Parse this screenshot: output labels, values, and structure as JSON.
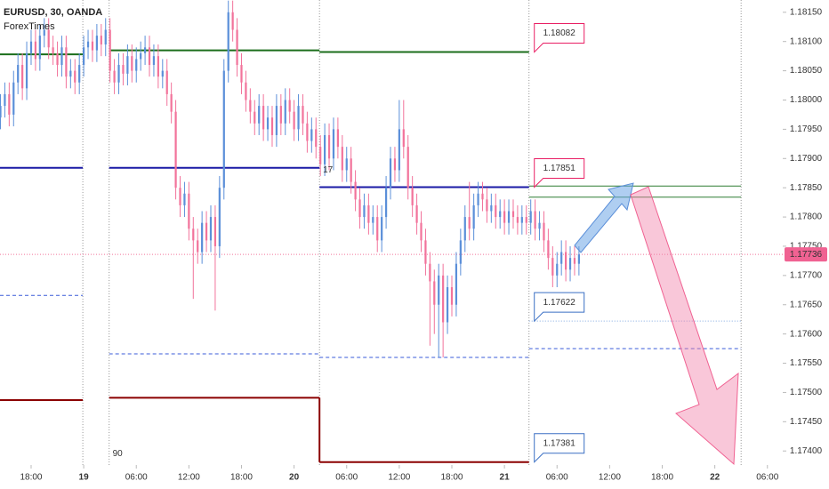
{
  "chart_data": {
    "type": "candlestick",
    "title": "EURUSD, 30, OANDA",
    "subtitle": "ForexTimes",
    "up_color": "#5b8fd9",
    "down_color": "#f2739b",
    "xlim": [
      -3.55,
      85.75
    ],
    "ylim": [
      1.17376,
      1.18171
    ],
    "xticks": [
      {
        "value": 0,
        "label": "18:00"
      },
      {
        "value": 6,
        "label": "19"
      },
      {
        "value": 12,
        "label": "06:00"
      },
      {
        "value": 18,
        "label": "12:00"
      },
      {
        "value": 24,
        "label": "18:00"
      },
      {
        "value": 30,
        "label": "20"
      },
      {
        "value": 36,
        "label": "06:00"
      },
      {
        "value": 42,
        "label": "12:00"
      },
      {
        "value": 48,
        "label": "18:00"
      },
      {
        "value": 54,
        "label": "21"
      },
      {
        "value": 60,
        "label": "06:00"
      },
      {
        "value": 66,
        "label": "12:00"
      },
      {
        "value": 72,
        "label": "18:00"
      },
      {
        "value": 78,
        "label": "22"
      },
      {
        "value": 84,
        "label": "06:00"
      }
    ],
    "yticks": [
      {
        "value": 1.1815,
        "label": "1.18150"
      },
      {
        "value": 1.181,
        "label": "1.18100"
      },
      {
        "value": 1.1805,
        "label": "1.18050"
      },
      {
        "value": 1.18,
        "label": "1.18000"
      },
      {
        "value": 1.1795,
        "label": "1.17950"
      },
      {
        "value": 1.179,
        "label": "1.17900"
      },
      {
        "value": 1.1785,
        "label": "1.17850"
      },
      {
        "value": 1.178,
        "label": "1.17800"
      },
      {
        "value": 1.1775,
        "label": "1.17750"
      },
      {
        "value": 1.177,
        "label": "1.17700"
      },
      {
        "value": 1.1765,
        "label": "1.17650"
      },
      {
        "value": 1.176,
        "label": "1.17600"
      },
      {
        "value": 1.1755,
        "label": "1.17550"
      },
      {
        "value": 1.175,
        "label": "1.17500"
      },
      {
        "value": 1.1745,
        "label": "1.17450"
      },
      {
        "value": 1.174,
        "label": "1.17400"
      }
    ],
    "sessions": [
      5.9,
      8.9,
      32.9,
      56.8,
      81
    ],
    "x": [
      -3.5,
      -3,
      -2.5,
      -2,
      -1.5,
      -1,
      -0.5,
      0,
      0.5,
      1,
      1.5,
      2,
      2.5,
      3,
      3.5,
      4,
      4.5,
      5,
      5.5,
      6,
      6.5,
      7,
      7.5,
      8,
      8.5,
      9,
      9.5,
      10,
      10.5,
      11,
      11.5,
      12,
      12.5,
      13,
      13.5,
      14,
      14.5,
      15,
      15.5,
      16,
      16.5,
      17,
      17.5,
      18,
      18.5,
      19,
      19.5,
      20,
      20.5,
      21,
      21.5,
      22,
      22.5,
      23,
      23.5,
      24,
      24.5,
      25,
      25.5,
      26,
      26.5,
      27,
      27.5,
      28,
      28.5,
      29,
      29.5,
      30,
      30.5,
      31,
      31.5,
      32,
      32.5,
      33,
      33.5,
      34,
      34.5,
      35,
      35.5,
      36,
      36.5,
      37,
      37.5,
      38,
      38.5,
      39,
      39.5,
      40,
      40.5,
      41,
      41.5,
      42,
      42.5,
      43,
      43.5,
      44,
      44.5,
      45,
      45.5,
      46,
      46.5,
      47,
      47.5,
      48,
      48.5,
      49,
      49.5,
      50,
      50.5,
      51,
      51.5,
      52,
      52.5,
      53,
      53.5,
      54,
      54.5,
      55,
      55.5,
      56,
      56.5,
      57,
      57.5,
      58,
      58.5,
      59,
      59.5,
      60,
      60.5,
      61,
      61.5,
      62,
      62.5
    ],
    "open": [
      1.1797,
      1.1799,
      1.1801,
      1.17975,
      1.1803,
      1.1806,
      1.1802,
      1.1808,
      1.181,
      1.1807,
      1.1811,
      1.1812,
      1.1809,
      1.1808,
      1.1806,
      1.1809,
      1.1804,
      1.1805,
      1.1803,
      1.1806,
      1.1809,
      1.181,
      1.18085,
      1.1811,
      1.18095,
      1.1812,
      1.1805,
      1.1803,
      1.1806,
      1.18045,
      1.18075,
      1.1805,
      1.1807,
      1.1808,
      1.1809,
      1.1806,
      1.18075,
      1.1804,
      1.1805,
      1.1801,
      1.1798,
      1.1785,
      1.1782,
      1.1784,
      1.1778,
      1.1776,
      1.1774,
      1.1779,
      1.1776,
      1.178,
      1.1775,
      1.1785,
      1.1805,
      1.1815,
      1.1812,
      1.1806,
      1.1803,
      1.18,
      1.1798,
      1.1796,
      1.1799,
      1.1795,
      1.1797,
      1.1794,
      1.1799,
      1.1796,
      1.18,
      1.1798,
      1.1795,
      1.1799,
      1.1796,
      1.1793,
      1.1795,
      1.1792,
      1.1789,
      1.1794,
      1.179,
      1.1795,
      1.1792,
      1.1788,
      1.179,
      1.1786,
      1.1783,
      1.178,
      1.1782,
      1.1779,
      1.178,
      1.1776,
      1.178,
      1.1785,
      1.179,
      1.1788,
      1.1795,
      1.1792,
      1.1785,
      1.1782,
      1.1779,
      1.1776,
      1.1772,
      1.1769,
      1.1765,
      1.177,
      1.1762,
      1.1768,
      1.1765,
      1.1772,
      1.1776,
      1.178,
      1.1778,
      1.1782,
      1.1784,
      1.1783,
      1.1781,
      1.1782,
      1.178,
      1.1781,
      1.1779,
      1.1781,
      1.178,
      1.1779,
      1.178,
      1.1779,
      1.1781,
      1.1778,
      1.1779,
      1.1776,
      1.1773,
      1.177,
      1.1772,
      1.1774,
      1.1771,
      1.1773,
      1.1772
    ],
    "high": [
      1.1801,
      1.1803,
      1.1803,
      1.1805,
      1.1808,
      1.1808,
      1.181,
      1.1812,
      1.1812,
      1.1813,
      1.1814,
      1.1814,
      1.1811,
      1.181,
      1.1811,
      1.1811,
      1.1807,
      1.1807,
      1.1808,
      1.1811,
      1.1812,
      1.1812,
      1.1813,
      1.1813,
      1.1814,
      1.1814,
      1.1807,
      1.1808,
      1.1808,
      1.18095,
      1.18095,
      1.1809,
      1.181,
      1.1811,
      1.1811,
      1.18095,
      1.18095,
      1.1807,
      1.1807,
      1.1803,
      1.18,
      1.1787,
      1.1786,
      1.1786,
      1.178,
      1.1778,
      1.1781,
      1.1781,
      1.1782,
      1.1782,
      1.1787,
      1.1807,
      1.1817,
      1.1817,
      1.1814,
      1.1808,
      1.1805,
      1.1802,
      1.18,
      1.1801,
      1.1801,
      1.1799,
      1.1799,
      1.1801,
      1.1801,
      1.1802,
      1.1802,
      1.18,
      1.1801,
      1.1801,
      1.1798,
      1.1797,
      1.1797,
      1.1794,
      1.1796,
      1.1796,
      1.1797,
      1.1797,
      1.1794,
      1.1792,
      1.1792,
      1.1788,
      1.1785,
      1.1784,
      1.1784,
      1.1782,
      1.1782,
      1.1782,
      1.1787,
      1.1792,
      1.1792,
      1.18,
      1.18,
      1.1794,
      1.1787,
      1.1784,
      1.1781,
      1.1778,
      1.1774,
      1.1771,
      1.1772,
      1.1772,
      1.177,
      1.177,
      1.1774,
      1.1778,
      1.1782,
      1.1786,
      1.1784,
      1.1786,
      1.1786,
      1.1785,
      1.1784,
      1.1784,
      1.1783,
      1.1783,
      1.1783,
      1.1783,
      1.1782,
      1.1782,
      1.1782,
      1.1783,
      1.1783,
      1.1781,
      1.1781,
      1.1778,
      1.1775,
      1.1774,
      1.1776,
      1.1776,
      1.1775,
      1.1775,
      1.1775
    ],
    "low": [
      1.1795,
      1.1797,
      1.17955,
      1.17955,
      1.1801,
      1.18,
      1.18,
      1.1806,
      1.1805,
      1.1805,
      1.1809,
      1.1807,
      1.1806,
      1.1804,
      1.1804,
      1.1802,
      1.1802,
      1.1801,
      1.1801,
      1.1804,
      1.1807,
      1.18065,
      1.18065,
      1.18075,
      1.18075,
      1.1803,
      1.1801,
      1.1801,
      1.18025,
      1.18025,
      1.1803,
      1.1803,
      1.1805,
      1.1806,
      1.1804,
      1.1804,
      1.1802,
      1.1802,
      1.1799,
      1.1796,
      1.1783,
      1.178,
      1.178,
      1.1776,
      1.1766,
      1.1772,
      1.1772,
      1.1774,
      1.1774,
      1.1764,
      1.1773,
      1.1783,
      1.1803,
      1.181,
      1.1804,
      1.1801,
      1.1798,
      1.1796,
      1.1794,
      1.1794,
      1.1793,
      1.1793,
      1.1792,
      1.1792,
      1.1794,
      1.1794,
      1.1796,
      1.1793,
      1.1793,
      1.1794,
      1.1791,
      1.1791,
      1.179,
      1.1787,
      1.1787,
      1.1788,
      1.1788,
      1.179,
      1.1786,
      1.1786,
      1.1784,
      1.1781,
      1.1778,
      1.1778,
      1.1777,
      1.1777,
      1.1774,
      1.1774,
      1.1778,
      1.1783,
      1.1786,
      1.1786,
      1.179,
      1.1783,
      1.178,
      1.1777,
      1.1774,
      1.177,
      1.1758,
      1.176,
      1.1756,
      1.1756,
      1.176,
      1.1763,
      1.1763,
      1.177,
      1.1774,
      1.1776,
      1.1776,
      1.178,
      1.1781,
      1.1779,
      1.1779,
      1.1778,
      1.1778,
      1.1777,
      1.1777,
      1.1778,
      1.1777,
      1.1777,
      1.1777,
      1.1777,
      1.1776,
      1.1776,
      1.1774,
      1.1771,
      1.1768,
      1.1768,
      1.177,
      1.1769,
      1.1769,
      1.177,
      1.177
    ],
    "close": [
      1.1799,
      1.1801,
      1.17975,
      1.1803,
      1.1806,
      1.1802,
      1.1808,
      1.181,
      1.1807,
      1.1811,
      1.1812,
      1.1809,
      1.1808,
      1.1806,
      1.1809,
      1.1804,
      1.1805,
      1.1803,
      1.1806,
      1.1809,
      1.181,
      1.18085,
      1.1811,
      1.18095,
      1.1812,
      1.1805,
      1.1803,
      1.1806,
      1.18045,
      1.18075,
      1.1805,
      1.1807,
      1.1808,
      1.1809,
      1.1806,
      1.18075,
      1.1804,
      1.1805,
      1.1801,
      1.1798,
      1.1785,
      1.1782,
      1.1784,
      1.1778,
      1.1776,
      1.1774,
      1.1779,
      1.1776,
      1.178,
      1.1775,
      1.1785,
      1.1805,
      1.1815,
      1.1812,
      1.1806,
      1.1803,
      1.18,
      1.1798,
      1.1796,
      1.1799,
      1.1795,
      1.1797,
      1.1794,
      1.1799,
      1.1796,
      1.18,
      1.1798,
      1.1795,
      1.1799,
      1.1796,
      1.1793,
      1.1795,
      1.1792,
      1.1789,
      1.1794,
      1.179,
      1.1795,
      1.1792,
      1.1788,
      1.179,
      1.1786,
      1.1783,
      1.178,
      1.1782,
      1.1779,
      1.178,
      1.1776,
      1.178,
      1.1785,
      1.179,
      1.1788,
      1.1795,
      1.1792,
      1.1785,
      1.1782,
      1.1779,
      1.1776,
      1.1772,
      1.1769,
      1.1765,
      1.177,
      1.1762,
      1.1768,
      1.1765,
      1.1772,
      1.1776,
      1.178,
      1.1778,
      1.1782,
      1.1784,
      1.1783,
      1.1781,
      1.1782,
      1.178,
      1.1781,
      1.1779,
      1.1781,
      1.178,
      1.1779,
      1.178,
      1.1779,
      1.1781,
      1.1778,
      1.1779,
      1.1776,
      1.1773,
      1.177,
      1.1772,
      1.1774,
      1.1771,
      1.1773,
      1.1772,
      1.17736
    ],
    "last_price": 1.17736,
    "levels": [
      {
        "value": 1.18078,
        "x": [
          -3.55,
          5.9
        ],
        "color": "#1b6e1b",
        "style": "solid"
      },
      {
        "value": 1.17884,
        "x": [
          -3.55,
          5.9
        ],
        "color": "#1a1aa6",
        "style": "solid"
      },
      {
        "value": 1.17666,
        "x": [
          -3.55,
          5.9
        ],
        "color": "#3a5bd9",
        "style": "dashed"
      },
      {
        "value": 1.17487,
        "x": [
          -3.55,
          5.9
        ],
        "color": "#8b0000",
        "style": "solid"
      },
      {
        "value": 1.18085,
        "x": [
          8.9,
          32.9
        ],
        "color": "#1b6e1b",
        "style": "solid"
      },
      {
        "value": 1.17884,
        "x": [
          8.9,
          32.9
        ],
        "color": "#1a1aa6",
        "style": "solid"
      },
      {
        "value": 1.17566,
        "x": [
          8.9,
          32.9
        ],
        "color": "#3a5bd9",
        "style": "dashed"
      },
      {
        "value": 1.17491,
        "x": [
          8.9,
          32.9
        ],
        "color": "#8b0000",
        "style": "solid"
      },
      {
        "value": 1.18082,
        "x": [
          32.9,
          56.8
        ],
        "color": "#1b6e1b",
        "style": "solid"
      },
      {
        "value": 1.17851,
        "x": [
          32.9,
          56.8
        ],
        "color": "#1a1aa6",
        "style": "solid"
      },
      {
        "value": 1.1756,
        "x": [
          32.9,
          56.8
        ],
        "color": "#3a5bd9",
        "style": "dashed"
      },
      {
        "value": 1.17381,
        "x": [
          32.9,
          56.8
        ],
        "color": "#8b0000",
        "style": "solid"
      },
      {
        "value": 1.17853,
        "x": [
          56.8,
          81
        ],
        "color": "#2e7d32",
        "style": "thin"
      },
      {
        "value": 1.17834,
        "x": [
          56.8,
          81
        ],
        "color": "#2e7d32",
        "style": "thin"
      },
      {
        "value": 1.17622,
        "x": [
          56.8,
          81
        ],
        "color": "#7fa6e0",
        "style": "dotted"
      },
      {
        "value": 1.17575,
        "x": [
          56.8,
          81
        ],
        "color": "#3a5bd9",
        "style": "dashed"
      }
    ],
    "callouts": [
      {
        "value": 1.18082,
        "color": "#e91e63"
      },
      {
        "value": 1.17851,
        "color": "#e91e63"
      },
      {
        "value": 1.17622,
        "color": "#3a6fc4"
      },
      {
        "value": 1.17381,
        "color": "#3a6fc4"
      }
    ],
    "annotations": [
      {
        "text": "17",
        "x": 33.3,
        "y": 1.1788,
        "color": "#f2739b"
      },
      {
        "text": "90",
        "x": 9.3,
        "y": 1.17395,
        "color": "#5b8fd9"
      }
    ]
  }
}
